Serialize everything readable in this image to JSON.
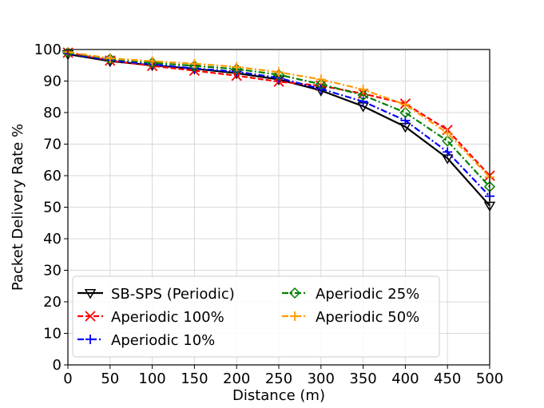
{
  "chart_data": {
    "type": "line",
    "title": "",
    "xlabel": "Distance (m)",
    "ylabel": "Packet Delivery Rate %",
    "xlim": [
      0,
      500
    ],
    "ylim": [
      0,
      100
    ],
    "xticks": [
      0,
      50,
      100,
      150,
      200,
      250,
      300,
      350,
      400,
      450,
      500
    ],
    "yticks": [
      0,
      10,
      20,
      30,
      40,
      50,
      60,
      70,
      80,
      90,
      100
    ],
    "grid": true,
    "legend_position": "lower-left",
    "x": [
      0,
      50,
      100,
      150,
      200,
      250,
      300,
      350,
      400,
      450,
      500
    ],
    "series": [
      {
        "name": "SB-SPS (Periodic)",
        "values": [
          98.5,
          96.3,
          95.0,
          93.9,
          92.5,
          90.5,
          87.0,
          82.0,
          75.5,
          65.5,
          50.5
        ],
        "color": "#000000",
        "dash": "solid",
        "marker": "triangle-down"
      },
      {
        "name": "Aperiodic 100%",
        "values": [
          99.0,
          96.5,
          94.8,
          93.3,
          91.7,
          89.8,
          88.5,
          86.0,
          82.8,
          74.5,
          60.0
        ],
        "color": "#ff0000",
        "dash": "dashed",
        "marker": "x"
      },
      {
        "name": "Aperiodic 10%",
        "values": [
          98.7,
          96.6,
          95.3,
          94.0,
          93.0,
          91.0,
          87.5,
          83.5,
          77.5,
          67.5,
          53.5
        ],
        "color": "#0000ff",
        "dash": "dashdot",
        "marker": "plus"
      },
      {
        "name": "Aperiodic 25%",
        "values": [
          99.0,
          97.0,
          95.8,
          94.8,
          93.8,
          92.0,
          89.0,
          85.5,
          80.0,
          71.0,
          56.5
        ],
        "color": "#008000",
        "dash": "dashdot",
        "marker": "diamond"
      },
      {
        "name": "Aperiodic 50%",
        "values": [
          99.2,
          97.2,
          96.3,
          95.5,
          94.5,
          92.8,
          90.5,
          87.3,
          82.5,
          73.5,
          59.5
        ],
        "color": "#ff9900",
        "dash": "dashdot",
        "marker": "plus"
      }
    ]
  }
}
